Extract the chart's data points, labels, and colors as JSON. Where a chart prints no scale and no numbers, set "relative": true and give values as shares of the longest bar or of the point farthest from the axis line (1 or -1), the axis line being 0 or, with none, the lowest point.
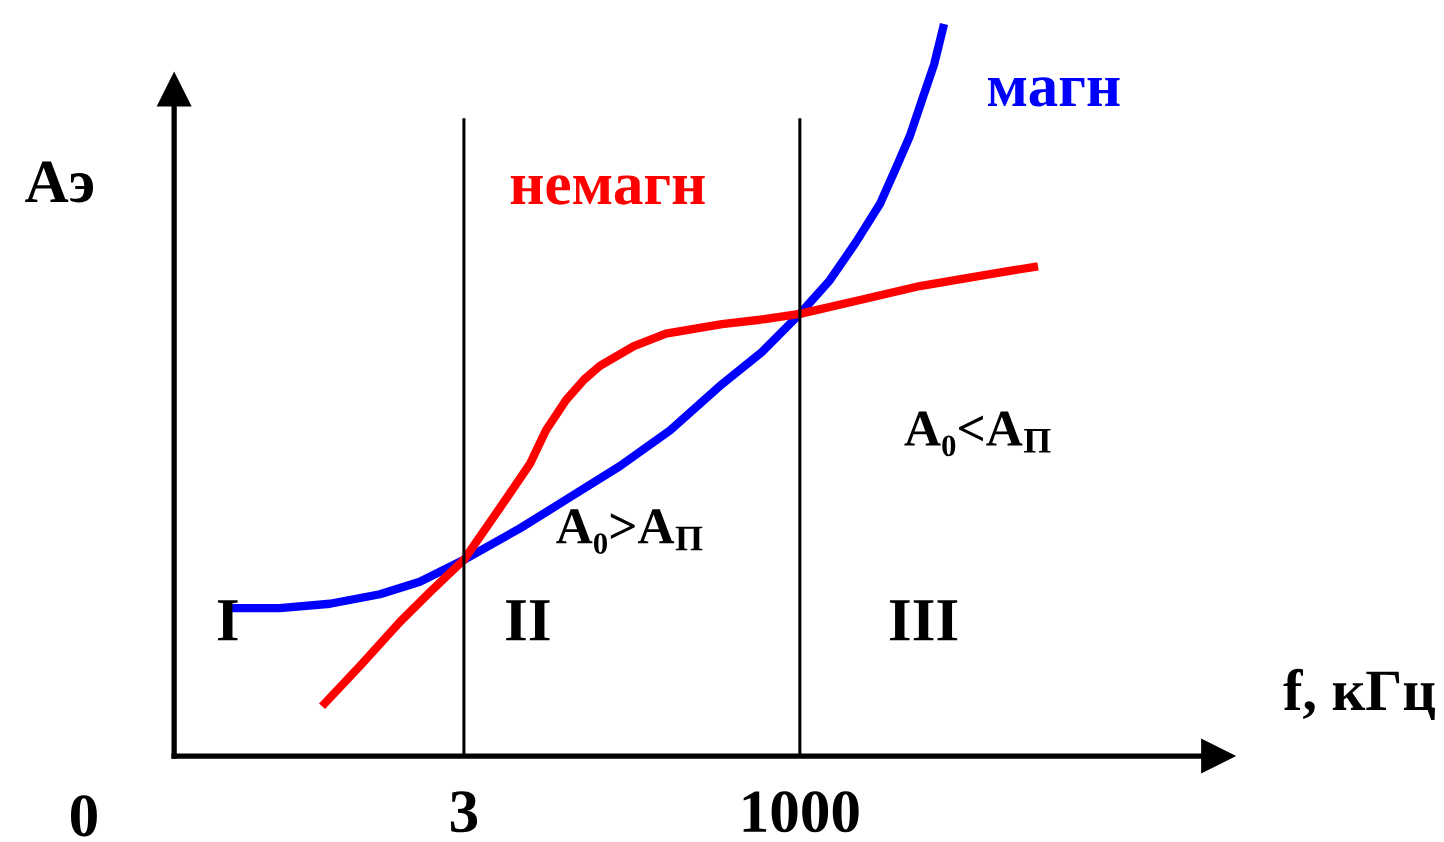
{
  "chart_data": {
    "type": "line",
    "relative": true,
    "log": "x",
    "xlim": [
      0.02,
      1000000
    ],
    "xticks": [
      3,
      1000
    ],
    "xlabel": "f, кГц",
    "ylabel": "Aэ",
    "tick_labels": "x",
    "grid": false,
    "legend": false,
    "series": [
      {
        "name": "магн",
        "color": "#0000ff",
        "x": [
          0.0525,
          0.124,
          0.296,
          0.702,
          1.4,
          3,
          7.9,
          17.5,
          44.5,
          106,
          260,
          519,
          1000,
          1680,
          2640,
          3990,
          5260,
          6700,
          8260,
          10200,
          12100
        ],
        "values": [
          0.202,
          0.202,
          0.208,
          0.221,
          0.238,
          0.268,
          0.311,
          0.35,
          0.396,
          0.445,
          0.508,
          0.552,
          0.604,
          0.65,
          0.702,
          0.754,
          0.803,
          0.847,
          0.896,
          0.945,
          1
        ]
      },
      {
        "name": "немагн",
        "color": "#ff0000",
        "x": [
          0.258,
          0.497,
          0.991,
          1.67,
          3,
          5.59,
          9.39,
          12.4,
          17.5,
          23.9,
          31.5,
          56.7,
          98.6,
          260,
          501,
          1000,
          2830,
          7970,
          22500,
          61400
        ],
        "values": [
          0.068,
          0.123,
          0.183,
          0.224,
          0.268,
          0.339,
          0.399,
          0.445,
          0.486,
          0.514,
          0.533,
          0.56,
          0.577,
          0.59,
          0.596,
          0.604,
          0.623,
          0.642,
          0.656,
          0.669
        ]
      }
    ],
    "ref_lines": [
      {
        "axis": "x",
        "value": 3,
        "color": "#000000"
      },
      {
        "axis": "x",
        "value": 1000,
        "color": "#000000"
      }
    ],
    "annotations": [
      "0",
      "I",
      "II",
      "III",
      "A₀>A$_{П}$",
      "A₀<A$_{П}$"
    ]
  }
}
